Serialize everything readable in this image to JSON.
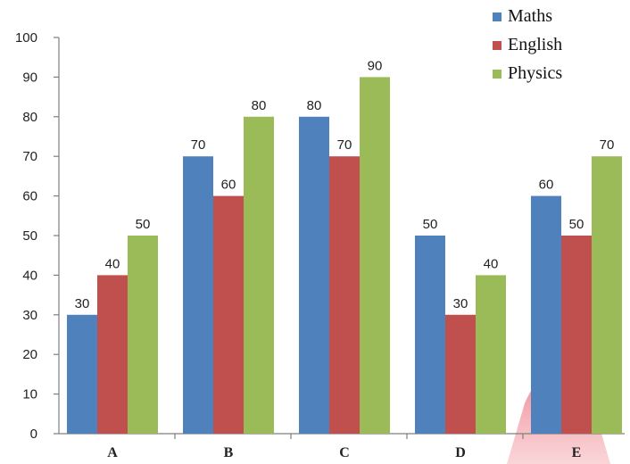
{
  "chart_data": {
    "type": "bar",
    "categories": [
      "A",
      "B",
      "C",
      "D",
      "E"
    ],
    "series": [
      {
        "name": "Maths",
        "color": "#4f81bd",
        "values": [
          30,
          70,
          80,
          50,
          60
        ]
      },
      {
        "name": "English",
        "color": "#c0504d",
        "values": [
          40,
          60,
          70,
          30,
          50
        ]
      },
      {
        "name": "Physics",
        "color": "#9bbb59",
        "values": [
          50,
          80,
          90,
          40,
          70
        ]
      }
    ],
    "yticks": [
      "0",
      "10",
      "20",
      "30",
      "40",
      "50",
      "60",
      "70",
      "80",
      "90",
      "100"
    ],
    "ylim": [
      0,
      100
    ],
    "data_labels": true,
    "grid": false,
    "legend_position": "top-right",
    "title": "",
    "xlabel": "",
    "ylabel": ""
  }
}
